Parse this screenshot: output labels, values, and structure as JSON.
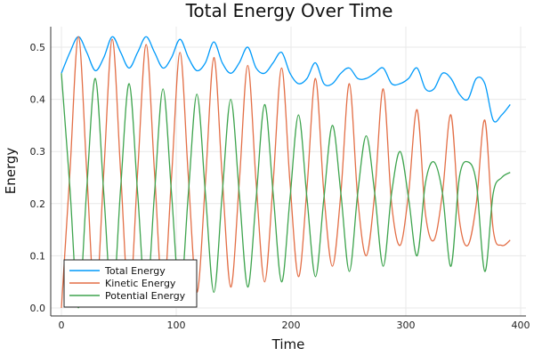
{
  "chart_data": {
    "type": "line",
    "title": "Total Energy Over Time",
    "xlabel": "Time",
    "ylabel": "Energy",
    "xlim": [
      -8,
      405
    ],
    "ylim": [
      -0.015,
      0.54
    ],
    "xticks": [
      0,
      100,
      200,
      300,
      400
    ],
    "xtick_labels": [
      "0",
      "100",
      "200",
      "300",
      "400"
    ],
    "yticks": [
      0,
      0.1,
      0.2,
      0.3,
      0.4,
      0.5
    ],
    "ytick_labels": [
      "0.0",
      "0.1",
      "0.2",
      "0.3",
      "0.4",
      "0.5"
    ],
    "grid": true,
    "legend_position": "bottom-left",
    "x": [
      0,
      7.4,
      14.8,
      22.1,
      29.5,
      36.9,
      44.3,
      51.6,
      59.0,
      66.4,
      73.8,
      81.1,
      88.5,
      95.9,
      103.3,
      110.6,
      118.0,
      125.4,
      132.8,
      140.1,
      147.5,
      154.9,
      162.3,
      169.6,
      177.0,
      184.4,
      191.8,
      199.1,
      206.5,
      213.9,
      221.3,
      228.6,
      236.0,
      243.4,
      250.8,
      258.1,
      265.5,
      272.9,
      280.3,
      287.6,
      295.0,
      302.4,
      309.8,
      317.1,
      324.5,
      331.9,
      339.3,
      346.6,
      354.0,
      361.4,
      368.8,
      376.1,
      383.5,
      390.9
    ],
    "series": [
      {
        "name": "Total Energy",
        "color": "#009AFA",
        "values": [
          0.45,
          0.49,
          0.52,
          0.49,
          0.455,
          0.48,
          0.52,
          0.49,
          0.46,
          0.49,
          0.52,
          0.49,
          0.46,
          0.48,
          0.515,
          0.48,
          0.455,
          0.47,
          0.51,
          0.47,
          0.45,
          0.47,
          0.5,
          0.46,
          0.45,
          0.47,
          0.49,
          0.45,
          0.43,
          0.44,
          0.47,
          0.43,
          0.43,
          0.45,
          0.46,
          0.44,
          0.44,
          0.45,
          0.46,
          0.43,
          0.43,
          0.44,
          0.46,
          0.42,
          0.42,
          0.45,
          0.44,
          0.41,
          0.4,
          0.44,
          0.43,
          0.36,
          0.37,
          0.39
        ]
      },
      {
        "name": "Kinetic Energy",
        "color": "#E36F47",
        "values": [
          0,
          0.26,
          0.52,
          0.26,
          0.005,
          0.26,
          0.515,
          0.26,
          0.01,
          0.26,
          0.505,
          0.26,
          0.02,
          0.25,
          0.49,
          0.25,
          0.03,
          0.24,
          0.48,
          0.25,
          0.04,
          0.24,
          0.465,
          0.24,
          0.05,
          0.24,
          0.46,
          0.24,
          0.06,
          0.23,
          0.44,
          0.22,
          0.08,
          0.22,
          0.43,
          0.21,
          0.1,
          0.22,
          0.42,
          0.2,
          0.12,
          0.22,
          0.38,
          0.18,
          0.13,
          0.22,
          0.37,
          0.17,
          0.12,
          0.2,
          0.36,
          0.15,
          0.12,
          0.13
        ]
      },
      {
        "name": "Potential Energy",
        "color": "#3EA44E",
        "values": [
          0.45,
          0.23,
          0.0,
          0.23,
          0.44,
          0.22,
          0.005,
          0.23,
          0.43,
          0.22,
          0.01,
          0.22,
          0.42,
          0.22,
          0.02,
          0.22,
          0.41,
          0.22,
          0.03,
          0.22,
          0.4,
          0.22,
          0.04,
          0.21,
          0.39,
          0.22,
          0.05,
          0.21,
          0.37,
          0.21,
          0.06,
          0.21,
          0.35,
          0.22,
          0.07,
          0.22,
          0.33,
          0.22,
          0.08,
          0.22,
          0.3,
          0.21,
          0.1,
          0.24,
          0.28,
          0.22,
          0.08,
          0.25,
          0.28,
          0.24,
          0.07,
          0.22,
          0.25,
          0.26
        ]
      }
    ]
  }
}
